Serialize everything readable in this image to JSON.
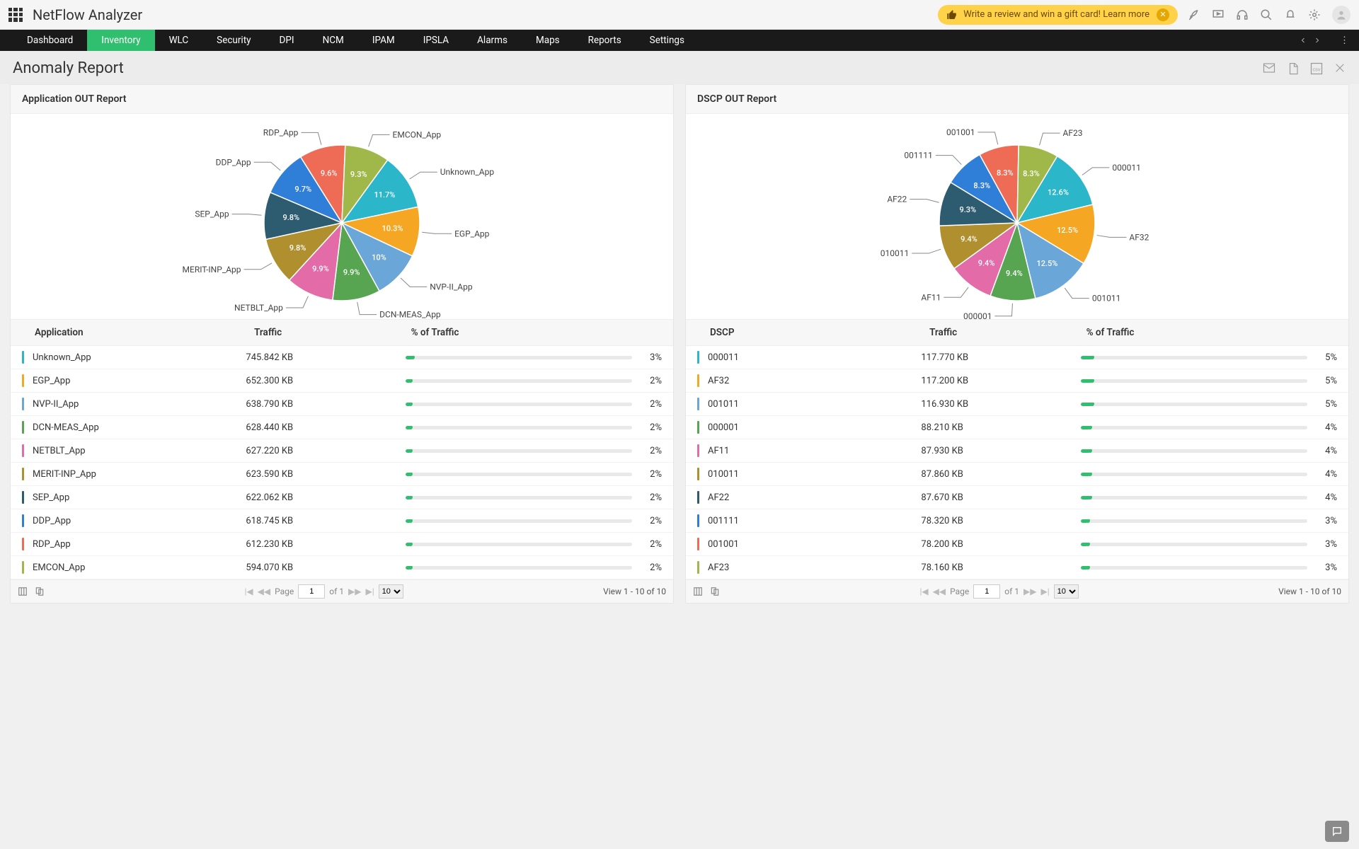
{
  "brand": "NetFlow Analyzer",
  "review_banner": "Write a review and win a gift card! Learn more",
  "nav": {
    "tabs": [
      "Dashboard",
      "Inventory",
      "WLC",
      "Security",
      "DPI",
      "NCM",
      "IPAM",
      "IPSLA",
      "Alarms",
      "Maps",
      "Reports",
      "Settings"
    ],
    "active_index": 1
  },
  "page_title": "Anomaly Report",
  "panels": [
    {
      "title": "Application OUT Report",
      "columns": [
        "Application",
        "Traffic",
        "% of Traffic"
      ],
      "chart": {
        "type": "pie",
        "radius": 110,
        "label_radius": 150,
        "pct_radius": 72,
        "background": "#ffffff",
        "label_font_size": 12,
        "pct_font_size": 11,
        "pct_color": "#ffffff",
        "start_angle_deg": -54
      },
      "rows": [
        {
          "name": "Unknown_App",
          "traffic": "745.842 KB",
          "pct": "3%",
          "pie_pct": 11.7,
          "slice_label": "11.7%",
          "color": "#2bb6c9",
          "bar_color": "#2fbf6f",
          "bar_fill_pct": 3
        },
        {
          "name": "EGP_App",
          "traffic": "652.300 KB",
          "pct": "2%",
          "pie_pct": 10.3,
          "slice_label": "10.3%",
          "color": "#f5a623",
          "bar_color": "#2fbf6f",
          "bar_fill_pct": 2
        },
        {
          "name": "NVP-II_App",
          "traffic": "638.790 KB",
          "pct": "2%",
          "pie_pct": 10.0,
          "slice_label": "10%",
          "color": "#6aa6d8",
          "bar_color": "#2fbf6f",
          "bar_fill_pct": 2
        },
        {
          "name": "DCN-MEAS_App",
          "traffic": "628.440 KB",
          "pct": "2%",
          "pie_pct": 9.9,
          "slice_label": "9.9%",
          "color": "#57a550",
          "bar_color": "#2fbf6f",
          "bar_fill_pct": 2
        },
        {
          "name": "NETBLT_App",
          "traffic": "627.220 KB",
          "pct": "2%",
          "pie_pct": 9.9,
          "slice_label": "9.9%",
          "color": "#e36ba7",
          "bar_color": "#2fbf6f",
          "bar_fill_pct": 2
        },
        {
          "name": "MERIT-INP_App",
          "traffic": "623.590 KB",
          "pct": "2%",
          "pie_pct": 9.8,
          "slice_label": "9.8%",
          "color": "#b08f2e",
          "bar_color": "#2fbf6f",
          "bar_fill_pct": 2
        },
        {
          "name": "SEP_App",
          "traffic": "622.062 KB",
          "pct": "2%",
          "pie_pct": 9.8,
          "slice_label": "9.8%",
          "color": "#2d5b70",
          "bar_color": "#2fbf6f",
          "bar_fill_pct": 2
        },
        {
          "name": "DDP_App",
          "traffic": "618.745 KB",
          "pct": "2%",
          "pie_pct": 9.7,
          "slice_label": "9.7%",
          "color": "#2f7ed8",
          "bar_color": "#2fbf6f",
          "bar_fill_pct": 2
        },
        {
          "name": "RDP_App",
          "traffic": "612.230 KB",
          "pct": "2%",
          "pie_pct": 9.6,
          "slice_label": "9.6%",
          "color": "#ee6b56",
          "bar_color": "#2fbf6f",
          "bar_fill_pct": 2
        },
        {
          "name": "EMCON_App",
          "traffic": "594.070 KB",
          "pct": "2%",
          "pie_pct": 9.3,
          "slice_label": "9.3%",
          "color": "#a0b84a",
          "bar_color": "#2fbf6f",
          "bar_fill_pct": 2
        }
      ],
      "pager": {
        "page": "1",
        "of": "1",
        "page_size": "10",
        "view": "View 1 - 10 of 10"
      }
    },
    {
      "title": "DSCP OUT Report",
      "columns": [
        "DSCP",
        "Traffic",
        "% of Traffic"
      ],
      "chart": {
        "type": "pie",
        "radius": 110,
        "label_radius": 150,
        "pct_radius": 72,
        "background": "#ffffff",
        "label_font_size": 12,
        "pct_font_size": 11,
        "pct_color": "#ffffff",
        "start_angle_deg": -59
      },
      "rows": [
        {
          "name": "000011",
          "traffic": "117.770 KB",
          "pct": "5%",
          "pie_pct": 12.6,
          "slice_label": "12.6%",
          "color": "#2bb6c9",
          "bar_color": "#2fbf6f",
          "bar_fill_pct": 5
        },
        {
          "name": "AF32",
          "traffic": "117.200 KB",
          "pct": "5%",
          "pie_pct": 12.5,
          "slice_label": "12.5%",
          "color": "#f5a623",
          "bar_color": "#2fbf6f",
          "bar_fill_pct": 5
        },
        {
          "name": "001011",
          "traffic": "116.930 KB",
          "pct": "5%",
          "pie_pct": 12.5,
          "slice_label": "12.5%",
          "color": "#6aa6d8",
          "bar_color": "#2fbf6f",
          "bar_fill_pct": 5
        },
        {
          "name": "000001",
          "traffic": "88.210 KB",
          "pct": "4%",
          "pie_pct": 9.4,
          "slice_label": "9.4%",
          "color": "#57a550",
          "bar_color": "#2fbf6f",
          "bar_fill_pct": 4
        },
        {
          "name": "AF11",
          "traffic": "87.930 KB",
          "pct": "4%",
          "pie_pct": 9.4,
          "slice_label": "9.4%",
          "color": "#e36ba7",
          "bar_color": "#2fbf6f",
          "bar_fill_pct": 4
        },
        {
          "name": "010011",
          "traffic": "87.860 KB",
          "pct": "4%",
          "pie_pct": 9.4,
          "slice_label": "9.4%",
          "color": "#b08f2e",
          "bar_color": "#2fbf6f",
          "bar_fill_pct": 4
        },
        {
          "name": "AF22",
          "traffic": "87.670 KB",
          "pct": "4%",
          "pie_pct": 9.3,
          "slice_label": "9.3%",
          "color": "#2d5b70",
          "bar_color": "#2fbf6f",
          "bar_fill_pct": 4
        },
        {
          "name": "001111",
          "traffic": "78.320 KB",
          "pct": "3%",
          "pie_pct": 8.3,
          "slice_label": "8.3%",
          "color": "#2f7ed8",
          "bar_color": "#2fbf6f",
          "bar_fill_pct": 3
        },
        {
          "name": "001001",
          "traffic": "78.200 KB",
          "pct": "3%",
          "pie_pct": 8.3,
          "slice_label": "8.3%",
          "color": "#ee6b56",
          "bar_color": "#2fbf6f",
          "bar_fill_pct": 3
        },
        {
          "name": "AF23",
          "traffic": "78.160 KB",
          "pct": "3%",
          "pie_pct": 8.3,
          "slice_label": "8.3%",
          "color": "#a0b84a",
          "bar_color": "#2fbf6f",
          "bar_fill_pct": 3
        }
      ],
      "pager": {
        "page": "1",
        "of": "1",
        "page_size": "10",
        "view": "View 1 - 10 of 10"
      }
    }
  ],
  "pager_labels": {
    "page": "Page",
    "of": "of"
  }
}
